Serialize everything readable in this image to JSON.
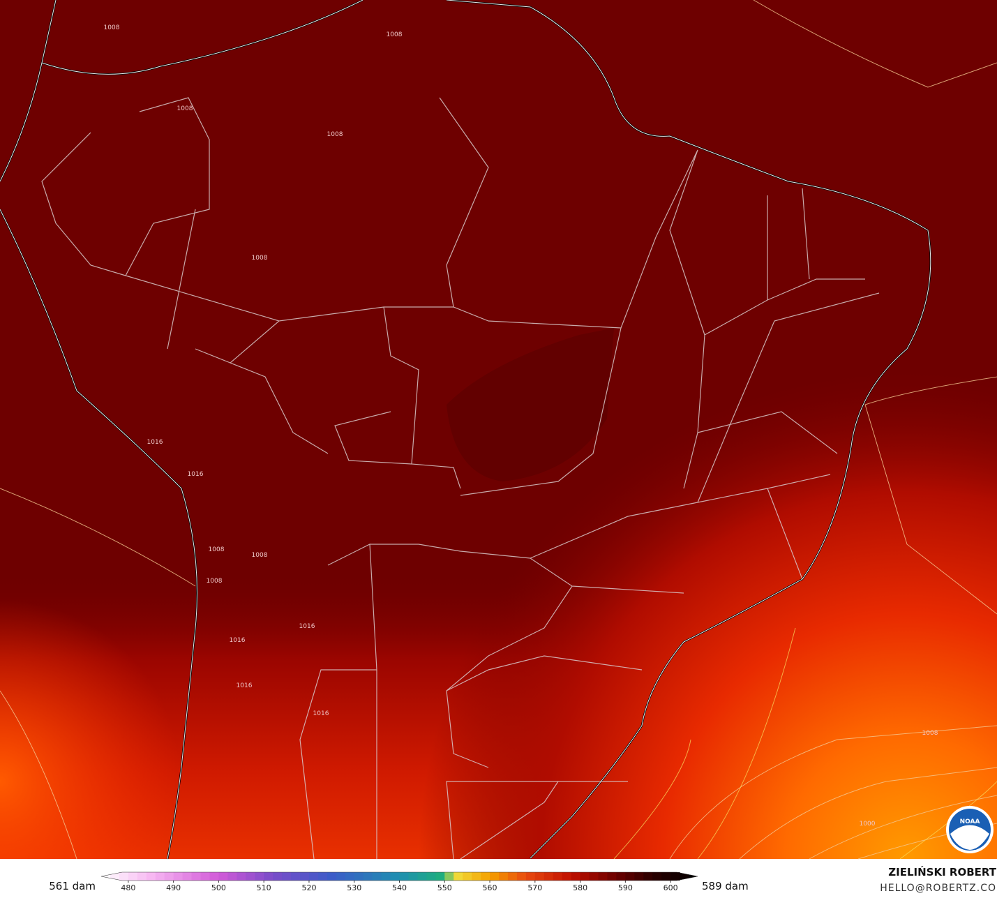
{
  "map": {
    "contour_labels": [
      "1008",
      "1008",
      "1008",
      "1008",
      "1008",
      "1016",
      "1016",
      "1008",
      "1008",
      "1008",
      "1016",
      "1016",
      "1016",
      "1016",
      "1008",
      "1000"
    ]
  },
  "colorbar": {
    "min_label": "561 dam",
    "max_label": "589 dam",
    "lim": [
      474,
      606
    ],
    "ticks": [
      480,
      490,
      500,
      510,
      520,
      530,
      540,
      550,
      560,
      570,
      580,
      590,
      600
    ],
    "stops": [
      {
        "value": 474,
        "color": "#ffffff"
      },
      {
        "value": 485,
        "color": "#f7b8f2"
      },
      {
        "value": 500,
        "color": "#d25ad8"
      },
      {
        "value": 512,
        "color": "#7a4cc9"
      },
      {
        "value": 525,
        "color": "#3c5cc8"
      },
      {
        "value": 540,
        "color": "#1f8fb0"
      },
      {
        "value": 550,
        "color": "#1fb07a"
      },
      {
        "value": 552,
        "color": "#f0e040"
      },
      {
        "value": 560,
        "color": "#f5a000"
      },
      {
        "value": 568,
        "color": "#e84a10"
      },
      {
        "value": 578,
        "color": "#c01000"
      },
      {
        "value": 588,
        "color": "#6a0000"
      },
      {
        "value": 596,
        "color": "#2a0000"
      },
      {
        "value": 606,
        "color": "#000000"
      }
    ]
  },
  "credits": {
    "author": "ZIELIŃSKI ROBERT",
    "email": "HELLO@ROBERTZ.CO",
    "logo": "NOAA"
  }
}
